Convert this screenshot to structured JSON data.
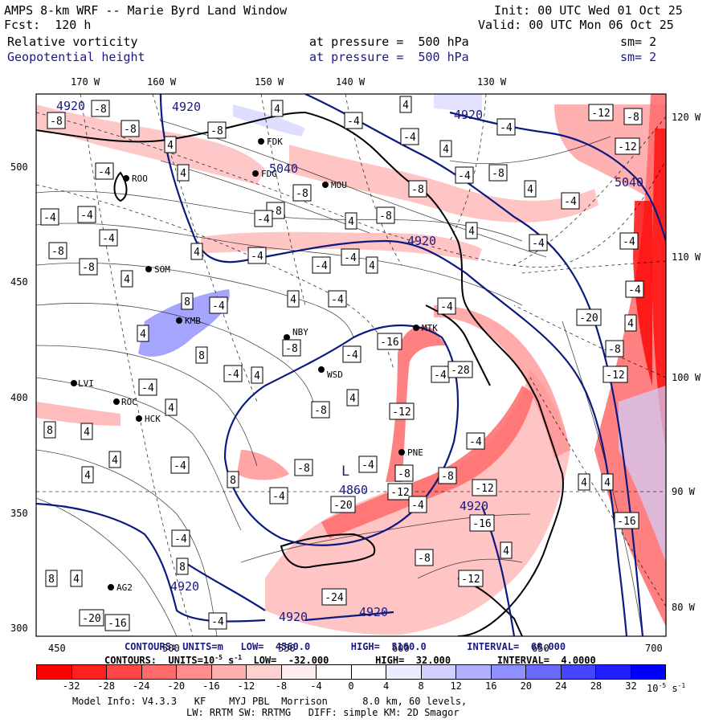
{
  "header": {
    "title": "AMPS 8-km WRF -- Marie Byrd Land Window",
    "forecast": "Fcst:  120 h",
    "init": "Init: 00 UTC Wed 01 Oct 25",
    "valid": "Valid: 00 UTC Mon 06 Oct 25",
    "field1_name": "Relative vorticity",
    "field1_level": "at pressure =  500 hPa",
    "field1_sm": "sm= 2",
    "field2_name": "Geopotential height",
    "field2_level": "at pressure =  500 hPa",
    "field2_sm": "sm= 2"
  },
  "axes": {
    "top_ticks": [
      "170 W",
      "160 W",
      "150 W",
      "140 W",
      "130 W"
    ],
    "right_ticks": [
      "120 W",
      "110 W",
      "100 W",
      "90 W",
      "80 W"
    ],
    "left_ticks": [
      "500",
      "450",
      "400",
      "350",
      "300"
    ],
    "bottom_ticks": [
      "450",
      "500",
      "550",
      "600",
      "650",
      "700"
    ]
  },
  "contour_info": {
    "height_line": "CONTOURS: UNITS=m   LOW=  4560.0       HIGH=  5160.0       INTERVAL=  60.000",
    "vort_line": "CONTOURS:  UNITS=10",
    "vort_exp": "-5",
    "vort_rest": " s",
    "vort_exp2": "-1",
    "vort_tail": "  LOW=  -32.000        HIGH=  32.000        INTERVAL=  4.0000"
  },
  "colorbar": {
    "labels": [
      "-32",
      "-28",
      "-24",
      "-20",
      "-16",
      "-12",
      "-8",
      "-4",
      "0",
      "4",
      "8",
      "12",
      "16",
      "20",
      "24",
      "28",
      "32"
    ],
    "units": "10",
    "units_exp": "-5",
    "units_s": " s",
    "units_exp2": "-1",
    "colors": [
      "#ff0000",
      "#ff2020",
      "#ff4545",
      "#ff6a6a",
      "#ff8f8f",
      "#ffb0b0",
      "#ffd0d0",
      "#ffecec",
      "#ffffff",
      "#ffffff",
      "#ececff",
      "#d0d0ff",
      "#b0b0ff",
      "#8f8fff",
      "#6a6aff",
      "#4545ff",
      "#2020ff",
      "#0000ff"
    ]
  },
  "footer": {
    "line1": "Model Info: V4.3.3   KF    MYJ PBL  Morrison      8.0 km, 60 levels,",
    "line2": "LW: RRTM SW: RRTMG   DIFF: simple KM: 2D Smagor"
  },
  "stations": [
    "FDK",
    "FDG",
    "MOU",
    "ROO",
    "SOM",
    "KMB",
    "NBY",
    "WSD",
    "MTK",
    "LVI",
    "ROC",
    "HCK",
    "PNE",
    "AG2"
  ],
  "height_labels": [
    "4920",
    "5040",
    "4920",
    "4920",
    "5040",
    "4920",
    "4860",
    "4920",
    "4920",
    "4920",
    "4920"
  ],
  "vort_labels": [
    "-8",
    "-8",
    "-8",
    "4",
    "-4",
    "4",
    "4",
    "-4",
    "-8",
    "4",
    "-12",
    "-8",
    "-4",
    "-4",
    "4",
    "-8",
    "-4",
    "-8",
    "4",
    "-4",
    "-8",
    "-8",
    "-4",
    "-4",
    "4",
    "-8",
    "-4",
    "-4",
    "-8",
    "-4",
    "4",
    "-4",
    "4",
    "-4",
    "4",
    "-8",
    "-4",
    "4",
    "4",
    "-4",
    "8",
    "-4",
    "4",
    "-4",
    "4",
    "8",
    "-4",
    "-8",
    "-16",
    "-4",
    "4",
    "-4",
    "4",
    "4",
    "-12",
    "-4",
    "-8",
    "-4",
    "4",
    "8",
    "-8",
    "-12",
    "-4",
    "-8",
    "-20",
    "-12",
    "-16",
    "-8",
    "-4",
    "4",
    "-4",
    "-8",
    "-12",
    "4",
    "8",
    "4",
    "-4",
    "-4",
    "8",
    "4",
    "8",
    "-4",
    "-16",
    "-20",
    "-24",
    "-28",
    "-12",
    "-8",
    "-4",
    "-4",
    "-12",
    "-20",
    "-16",
    "4",
    "4"
  ],
  "center_label": "L"
}
